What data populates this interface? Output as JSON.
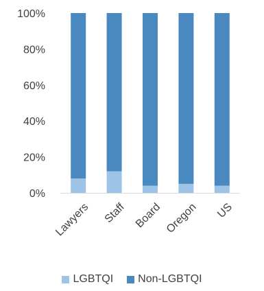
{
  "chart_data": {
    "type": "bar",
    "stacked": true,
    "percent": true,
    "categories": [
      "Lawyers",
      "Staff",
      "Board",
      "Oregon",
      "US"
    ],
    "series": [
      {
        "name": "LGBTQI",
        "color": "#9dc3e6",
        "values": [
          8,
          12,
          4,
          5,
          4
        ]
      },
      {
        "name": "Non-LGBTQI",
        "color": "#4a89c0",
        "values": [
          92,
          88,
          96,
          95,
          96
        ]
      }
    ],
    "y_ticks": [
      "0%",
      "20%",
      "40%",
      "60%",
      "80%",
      "100%"
    ],
    "y_tick_values": [
      0,
      20,
      40,
      60,
      80,
      100
    ],
    "ylim": [
      0,
      100
    ],
    "grid": false,
    "legend_position": "bottom"
  }
}
